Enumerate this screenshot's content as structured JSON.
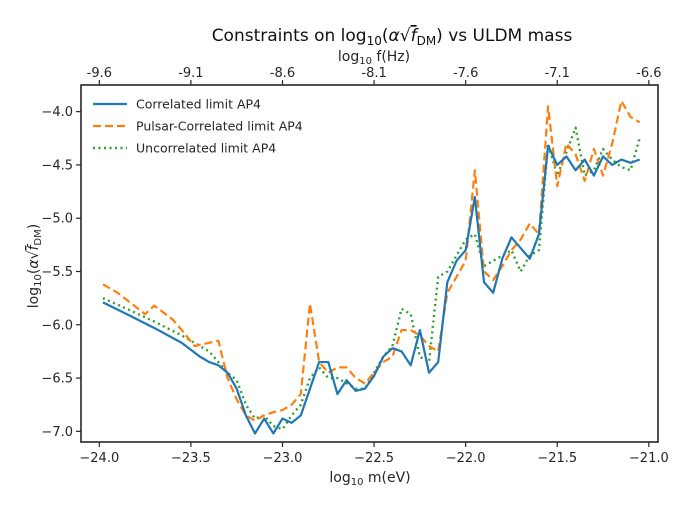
{
  "chart_data": {
    "type": "line",
    "title": "Constraints on log₁₀(α√f_DM) vs ULDM mass",
    "title_parts": {
      "prefix": "Constraints on log",
      "sub": "10",
      "alpha": "α",
      "f": "f",
      "fsub": "DM",
      "suffix": " vs ULDM mass"
    },
    "xlabel": "log₁₀ m(eV)",
    "xlabel_parts": {
      "prefix": "log",
      "sub": "10",
      "suffix": " m(eV)"
    },
    "ylabel": "log₁₀(α√f_DM)",
    "ylabel_parts": {
      "prefix": "log",
      "sub": "10",
      "alpha": "α",
      "f": "f",
      "fsub": "DM"
    },
    "top_xlabel": "log₁₀ f(Hz)",
    "top_xlabel_parts": {
      "prefix": "log",
      "sub": "10",
      "suffix": " f(Hz)"
    },
    "xlim": [
      -24.1,
      -20.95
    ],
    "ylim": [
      -7.1,
      -3.75
    ],
    "x_ticks": [
      -24.0,
      -23.5,
      -23.0,
      -22.5,
      -22.0,
      -21.5,
      -21.0
    ],
    "x_tick_labels": [
      "−24.0",
      "−23.5",
      "−23.0",
      "−22.5",
      "−22.0",
      "−21.5",
      "−21.0"
    ],
    "y_ticks": [
      -7.0,
      -6.5,
      -6.0,
      -5.5,
      -5.0,
      -4.5,
      -4.0
    ],
    "y_tick_labels": [
      "−7.0",
      "−6.5",
      "−6.0",
      "−5.5",
      "−5.0",
      "−4.5",
      "−4.0"
    ],
    "top_ticks_at_x": [
      -24.0,
      -23.5,
      -23.0,
      -22.5,
      -22.0,
      -21.5,
      -21.0
    ],
    "top_tick_labels": [
      "-9.6",
      "-9.1",
      "-8.6",
      "-8.1",
      "-7.6",
      "-7.1",
      "-6.6"
    ],
    "grid": false,
    "legend_position": "top-left",
    "series": [
      {
        "name": "Correlated limit AP4",
        "color": "#1f77b4",
        "style": "solid",
        "x": [
          -23.98,
          -23.85,
          -23.7,
          -23.55,
          -23.45,
          -23.4,
          -23.35,
          -23.3,
          -23.25,
          -23.2,
          -23.15,
          -23.1,
          -23.05,
          -23.0,
          -22.95,
          -22.9,
          -22.85,
          -22.8,
          -22.75,
          -22.7,
          -22.65,
          -22.6,
          -22.55,
          -22.5,
          -22.45,
          -22.4,
          -22.35,
          -22.3,
          -22.25,
          -22.2,
          -22.15,
          -22.1,
          -22.05,
          -22.0,
          -21.95,
          -21.9,
          -21.85,
          -21.8,
          -21.75,
          -21.7,
          -21.65,
          -21.6,
          -21.55,
          -21.5,
          -21.45,
          -21.4,
          -21.35,
          -21.3,
          -21.25,
          -21.2,
          -21.15,
          -21.1,
          -21.05
        ],
        "y": [
          -5.79,
          -5.9,
          -6.03,
          -6.17,
          -6.3,
          -6.35,
          -6.38,
          -6.45,
          -6.6,
          -6.85,
          -7.02,
          -6.88,
          -7.02,
          -6.88,
          -6.92,
          -6.85,
          -6.6,
          -6.35,
          -6.35,
          -6.65,
          -6.52,
          -6.62,
          -6.6,
          -6.48,
          -6.3,
          -6.22,
          -6.25,
          -6.38,
          -6.05,
          -6.45,
          -6.35,
          -5.6,
          -5.4,
          -5.3,
          -4.8,
          -5.6,
          -5.7,
          -5.38,
          -5.18,
          -5.28,
          -5.38,
          -5.15,
          -4.32,
          -4.5,
          -4.42,
          -4.55,
          -4.45,
          -4.6,
          -4.42,
          -4.5,
          -4.45,
          -4.48,
          -4.45
        ]
      },
      {
        "name": "Pulsar-Correlated limit AP4",
        "color": "#ff7f0e",
        "style": "dashed",
        "x": [
          -23.98,
          -23.9,
          -23.75,
          -23.7,
          -23.6,
          -23.55,
          -23.48,
          -23.43,
          -23.35,
          -23.3,
          -23.25,
          -23.2,
          -23.15,
          -23.1,
          -23.05,
          -23.0,
          -22.95,
          -22.9,
          -22.85,
          -22.8,
          -22.75,
          -22.7,
          -22.65,
          -22.6,
          -22.55,
          -22.5,
          -22.45,
          -22.4,
          -22.35,
          -22.3,
          -22.25,
          -22.2,
          -22.15,
          -22.1,
          -22.05,
          -22.0,
          -21.95,
          -21.9,
          -21.85,
          -21.8,
          -21.75,
          -21.7,
          -21.65,
          -21.6,
          -21.55,
          -21.5,
          -21.45,
          -21.4,
          -21.35,
          -21.3,
          -21.25,
          -21.2,
          -21.15,
          -21.1,
          -21.05
        ],
        "y": [
          -5.62,
          -5.7,
          -5.9,
          -5.82,
          -5.95,
          -6.05,
          -6.2,
          -6.18,
          -6.15,
          -6.5,
          -6.7,
          -6.85,
          -6.9,
          -6.85,
          -6.82,
          -6.8,
          -6.75,
          -6.65,
          -5.8,
          -6.35,
          -6.45,
          -6.4,
          -6.4,
          -6.5,
          -6.55,
          -6.45,
          -6.35,
          -6.3,
          -6.05,
          -6.05,
          -6.1,
          -6.2,
          -6.25,
          -5.7,
          -5.55,
          -5.4,
          -4.55,
          -5.5,
          -5.58,
          -5.45,
          -5.3,
          -5.2,
          -5.05,
          -5.15,
          -3.95,
          -4.7,
          -4.3,
          -4.4,
          -4.65,
          -4.35,
          -4.6,
          -4.3,
          -3.9,
          -4.05,
          -4.1
        ]
      },
      {
        "name": "Uncorrelated limit AP4",
        "color": "#2ca02c",
        "style": "dotted",
        "x": [
          -23.98,
          -23.85,
          -23.7,
          -23.55,
          -23.4,
          -23.3,
          -23.25,
          -23.2,
          -23.15,
          -23.1,
          -23.05,
          -23.0,
          -22.95,
          -22.9,
          -22.85,
          -22.8,
          -22.75,
          -22.7,
          -22.65,
          -22.6,
          -22.55,
          -22.5,
          -22.45,
          -22.4,
          -22.35,
          -22.3,
          -22.25,
          -22.2,
          -22.15,
          -22.1,
          -22.05,
          -22.0,
          -21.95,
          -21.9,
          -21.85,
          -21.8,
          -21.75,
          -21.7,
          -21.65,
          -21.6,
          -21.55,
          -21.5,
          -21.45,
          -21.4,
          -21.35,
          -21.3,
          -21.25,
          -21.2,
          -21.15,
          -21.1,
          -21.05
        ],
        "y": [
          -5.75,
          -5.85,
          -5.97,
          -6.1,
          -6.25,
          -6.45,
          -6.52,
          -6.75,
          -6.88,
          -6.85,
          -6.95,
          -6.98,
          -6.85,
          -6.75,
          -6.5,
          -6.4,
          -6.5,
          -6.5,
          -6.55,
          -6.6,
          -6.6,
          -6.45,
          -6.3,
          -6.2,
          -5.85,
          -5.9,
          -6.3,
          -6.35,
          -5.55,
          -5.5,
          -5.35,
          -5.2,
          -5.15,
          -5.45,
          -5.4,
          -5.35,
          -5.3,
          -5.5,
          -5.35,
          -5.3,
          -4.3,
          -4.6,
          -4.38,
          -4.15,
          -4.6,
          -4.55,
          -4.35,
          -4.45,
          -4.52,
          -4.55,
          -4.25
        ]
      }
    ]
  }
}
